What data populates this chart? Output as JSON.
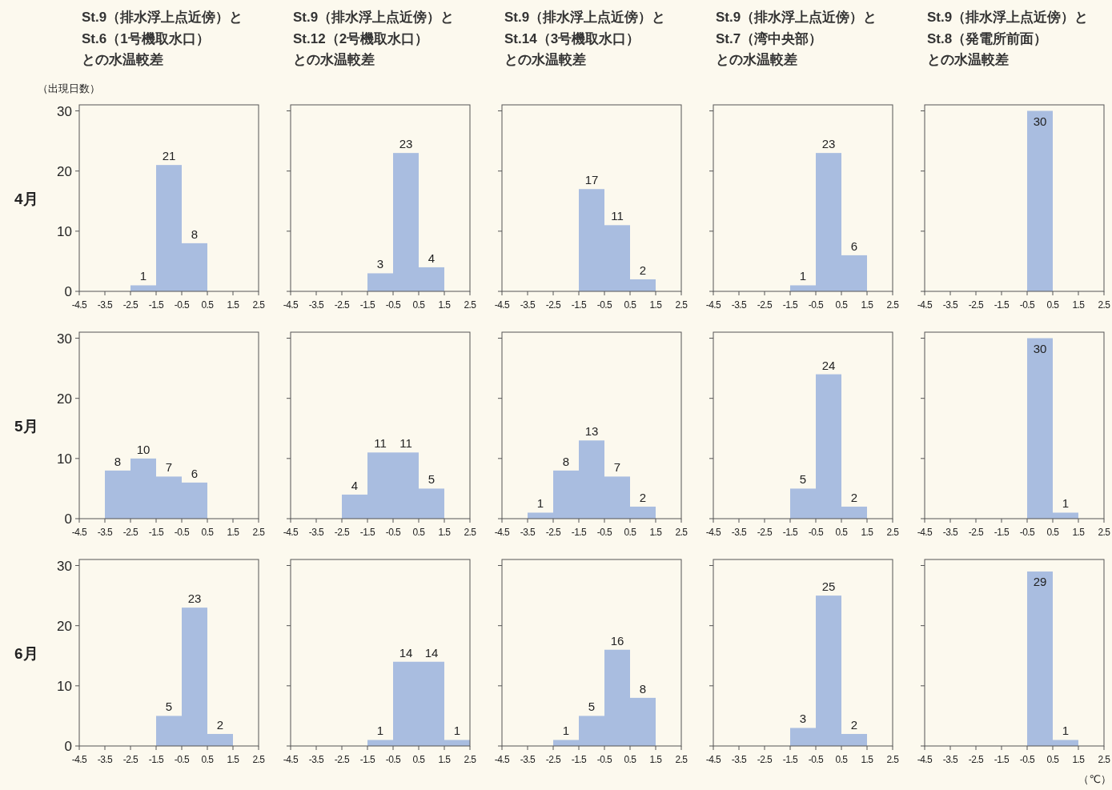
{
  "chart_data": [
    {
      "type": "histogram",
      "title": "St.9（排水浮上点近傍）とSt.6（1号機取水口）との水温較差",
      "ylabel": "4月",
      "annotations": [
        "（出現日数）"
      ],
      "bins": [
        -2.5,
        -1.5,
        -0.5,
        0.5
      ],
      "values": [
        1,
        21,
        8
      ],
      "color": "#a9bde0",
      "xlim": [
        -4.5,
        2.5
      ],
      "ylim": [
        0,
        31
      ],
      "xticks": [
        -4.5,
        -3.5,
        -2.5,
        -1.5,
        -0.5,
        0.5,
        1.5,
        2.5
      ],
      "yticks": [
        0,
        10,
        20,
        30
      ],
      "data_labels": true
    },
    {
      "type": "histogram",
      "title": "St.9（排水浮上点近傍）とSt.12（2号機取水口）との水温較差",
      "bins": [
        -1.5,
        -0.5,
        0.5,
        1.5
      ],
      "values": [
        3,
        23,
        4
      ],
      "color": "#a9bde0",
      "xlim": [
        -4.5,
        2.5
      ],
      "ylim": [
        0,
        31
      ],
      "xticks": [
        -4.5,
        -3.5,
        -2.5,
        -1.5,
        -0.5,
        0.5,
        1.5,
        2.5
      ],
      "yticks": [
        0,
        10,
        20,
        30
      ],
      "tick_labels": "x",
      "data_labels": true
    },
    {
      "type": "histogram",
      "title": "St.9（排水浮上点近傍）とSt.14（3号機取水口）との水温較差",
      "bins": [
        -1.5,
        -0.5,
        0.5,
        1.5
      ],
      "values": [
        17,
        11,
        2
      ],
      "color": "#a9bde0",
      "xlim": [
        -4.5,
        2.5
      ],
      "ylim": [
        0,
        31
      ],
      "xticks": [
        -4.5,
        -3.5,
        -2.5,
        -1.5,
        -0.5,
        0.5,
        1.5,
        2.5
      ],
      "yticks": [
        0,
        10,
        20,
        30
      ],
      "tick_labels": "x",
      "data_labels": true
    },
    {
      "type": "histogram",
      "title": "St.9（排水浮上点近傍）とSt.7（湾中央部）との水温較差",
      "bins": [
        -1.5,
        -0.5,
        0.5,
        1.5
      ],
      "values": [
        1,
        23,
        6
      ],
      "color": "#a9bde0",
      "xlim": [
        -4.5,
        2.5
      ],
      "ylim": [
        0,
        31
      ],
      "xticks": [
        -4.5,
        -3.5,
        -2.5,
        -1.5,
        -0.5,
        0.5,
        1.5,
        2.5
      ],
      "yticks": [
        0,
        10,
        20,
        30
      ],
      "tick_labels": "x",
      "data_labels": true
    },
    {
      "type": "histogram",
      "title": "St.9（排水浮上点近傍）とSt.8（発電所前面）との水温較差",
      "bins": [
        -0.5,
        0.5
      ],
      "values": [
        30
      ],
      "color": "#a9bde0",
      "xlim": [
        -4.5,
        2.5
      ],
      "ylim": [
        0,
        31
      ],
      "xticks": [
        -4.5,
        -3.5,
        -2.5,
        -1.5,
        -0.5,
        0.5,
        1.5,
        2.5
      ],
      "yticks": [
        0,
        10,
        20,
        30
      ],
      "tick_labels": "x",
      "data_labels": true
    },
    {
      "type": "histogram",
      "ylabel": "5月",
      "bins": [
        -3.5,
        -2.5,
        -1.5,
        -0.5,
        0.5
      ],
      "values": [
        8,
        10,
        7,
        6
      ],
      "color": "#a9bde0",
      "xlim": [
        -4.5,
        2.5
      ],
      "ylim": [
        0,
        31
      ],
      "xticks": [
        -4.5,
        -3.5,
        -2.5,
        -1.5,
        -0.5,
        0.5,
        1.5,
        2.5
      ],
      "yticks": [
        0,
        10,
        20,
        30
      ],
      "data_labels": true
    },
    {
      "type": "histogram",
      "bins": [
        -2.5,
        -1.5,
        -0.5,
        0.5,
        1.5
      ],
      "values": [
        4,
        11,
        11,
        5
      ],
      "color": "#a9bde0",
      "xlim": [
        -4.5,
        2.5
      ],
      "ylim": [
        0,
        31
      ],
      "xticks": [
        -4.5,
        -3.5,
        -2.5,
        -1.5,
        -0.5,
        0.5,
        1.5,
        2.5
      ],
      "yticks": [
        0,
        10,
        20,
        30
      ],
      "tick_labels": "x",
      "data_labels": true
    },
    {
      "type": "histogram",
      "bins": [
        -3.5,
        -2.5,
        -1.5,
        -0.5,
        0.5,
        1.5
      ],
      "values": [
        1,
        8,
        13,
        7,
        2
      ],
      "color": "#a9bde0",
      "xlim": [
        -4.5,
        2.5
      ],
      "ylim": [
        0,
        31
      ],
      "xticks": [
        -4.5,
        -3.5,
        -2.5,
        -1.5,
        -0.5,
        0.5,
        1.5,
        2.5
      ],
      "yticks": [
        0,
        10,
        20,
        30
      ],
      "tick_labels": "x",
      "data_labels": true
    },
    {
      "type": "histogram",
      "bins": [
        -1.5,
        -0.5,
        0.5,
        1.5
      ],
      "values": [
        5,
        24,
        2
      ],
      "color": "#a9bde0",
      "xlim": [
        -4.5,
        2.5
      ],
      "ylim": [
        0,
        31
      ],
      "xticks": [
        -4.5,
        -3.5,
        -2.5,
        -1.5,
        -0.5,
        0.5,
        1.5,
        2.5
      ],
      "yticks": [
        0,
        10,
        20,
        30
      ],
      "tick_labels": "x",
      "data_labels": true
    },
    {
      "type": "histogram",
      "bins": [
        -0.5,
        0.5,
        1.5
      ],
      "values": [
        30,
        1
      ],
      "color": "#a9bde0",
      "xlim": [
        -4.5,
        2.5
      ],
      "ylim": [
        0,
        31
      ],
      "xticks": [
        -4.5,
        -3.5,
        -2.5,
        -1.5,
        -0.5,
        0.5,
        1.5,
        2.5
      ],
      "yticks": [
        0,
        10,
        20,
        30
      ],
      "tick_labels": "x",
      "data_labels": true
    },
    {
      "type": "histogram",
      "ylabel": "6月",
      "bins": [
        -1.5,
        -0.5,
        0.5,
        1.5
      ],
      "values": [
        5,
        23,
        2
      ],
      "color": "#a9bde0",
      "xlim": [
        -4.5,
        2.5
      ],
      "ylim": [
        0,
        31
      ],
      "xticks": [
        -4.5,
        -3.5,
        -2.5,
        -1.5,
        -0.5,
        0.5,
        1.5,
        2.5
      ],
      "yticks": [
        0,
        10,
        20,
        30
      ],
      "data_labels": true
    },
    {
      "type": "histogram",
      "bins": [
        -1.5,
        -0.5,
        0.5,
        1.5,
        2.5
      ],
      "values": [
        1,
        14,
        14,
        1
      ],
      "color": "#a9bde0",
      "xlim": [
        -4.5,
        2.5
      ],
      "ylim": [
        0,
        31
      ],
      "xticks": [
        -4.5,
        -3.5,
        -2.5,
        -1.5,
        -0.5,
        0.5,
        1.5,
        2.5
      ],
      "yticks": [
        0,
        10,
        20,
        30
      ],
      "tick_labels": "x",
      "data_labels": true
    },
    {
      "type": "histogram",
      "bins": [
        -2.5,
        -1.5,
        -0.5,
        0.5,
        1.5
      ],
      "values": [
        1,
        5,
        16,
        8
      ],
      "color": "#a9bde0",
      "xlim": [
        -4.5,
        2.5
      ],
      "ylim": [
        0,
        31
      ],
      "xticks": [
        -4.5,
        -3.5,
        -2.5,
        -1.5,
        -0.5,
        0.5,
        1.5,
        2.5
      ],
      "yticks": [
        0,
        10,
        20,
        30
      ],
      "tick_labels": "x",
      "data_labels": true
    },
    {
      "type": "histogram",
      "bins": [
        -1.5,
        -0.5,
        0.5,
        1.5
      ],
      "values": [
        3,
        25,
        2
      ],
      "color": "#a9bde0",
      "xlim": [
        -4.5,
        2.5
      ],
      "ylim": [
        0,
        31
      ],
      "xticks": [
        -4.5,
        -3.5,
        -2.5,
        -1.5,
        -0.5,
        0.5,
        1.5,
        2.5
      ],
      "yticks": [
        0,
        10,
        20,
        30
      ],
      "tick_labels": "x",
      "data_labels": true
    },
    {
      "type": "histogram",
      "xlabel": "（℃）",
      "bins": [
        -0.5,
        0.5,
        1.5
      ],
      "values": [
        29,
        1
      ],
      "color": "#a9bde0",
      "xlim": [
        -4.5,
        2.5
      ],
      "ylim": [
        0,
        31
      ],
      "xticks": [
        -4.5,
        -3.5,
        -2.5,
        -1.5,
        -0.5,
        0.5,
        1.5,
        2.5
      ],
      "yticks": [
        0,
        10,
        20,
        30
      ],
      "tick_labels": "x",
      "data_labels": true
    }
  ]
}
